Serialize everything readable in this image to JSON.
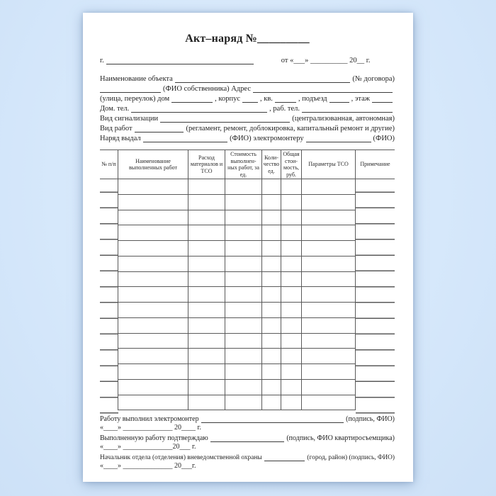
{
  "page": {
    "title": "Акт–наряд №_________",
    "city_line": {
      "label": "г.",
      "right": "от «___» __________ 20__ г."
    },
    "object_line": {
      "label": "Наименование объекта",
      "suffix": "(№ договора)"
    },
    "owner_line": {
      "mid": "(ФИО собственника) Адрес"
    },
    "street_line": {
      "p1": "(улица, переулок) дом",
      "p2": ", корпус",
      "p3": ", кв.",
      "p4": ", подъезд",
      "p5": ", этаж"
    },
    "phone_line": {
      "p1": "Дом. тел.",
      "p2": ", раб. тел."
    },
    "signal_line": {
      "label": "Вид сигнализации",
      "suffix": "(централизованная, автономная)"
    },
    "works_line": {
      "label": "Вид работ",
      "suffix": "(регламент, ремонт, доблокировка, капитальный ремонт и другие)"
    },
    "issued_line": {
      "p1": "Наряд выдал",
      "p2": "(ФИО) электромонтеру",
      "p3": "(ФИО)"
    },
    "table": {
      "columns": [
        "№ п/п",
        "Наименование выполненных работ",
        "Расход материалов и ТСО",
        "Стоимость выполнен-ных работ, за ед.",
        "Коли-чество ед.",
        "Общая стои-мость, руб.",
        "Параметры ТСО",
        "Примечание"
      ],
      "empty_rows": 15
    },
    "footer": {
      "line1": {
        "label": "Работу выполнил электромонтер",
        "suffix": "(подпись, ФИО)"
      },
      "date1": "«____» ______________ 20____ г.",
      "line2": {
        "label": "Выполненную работу подтверждаю",
        "suffix": "(подпись, ФИО квартиросъемщика)"
      },
      "date2": "«____» ______________20___ г.",
      "line3": {
        "label": "Начальник отдела (отделения) вневедомственной охраны",
        "suffix": "(город, район) (подпись, ФИО)"
      },
      "date3": "«____» ______________ 20___г."
    }
  }
}
